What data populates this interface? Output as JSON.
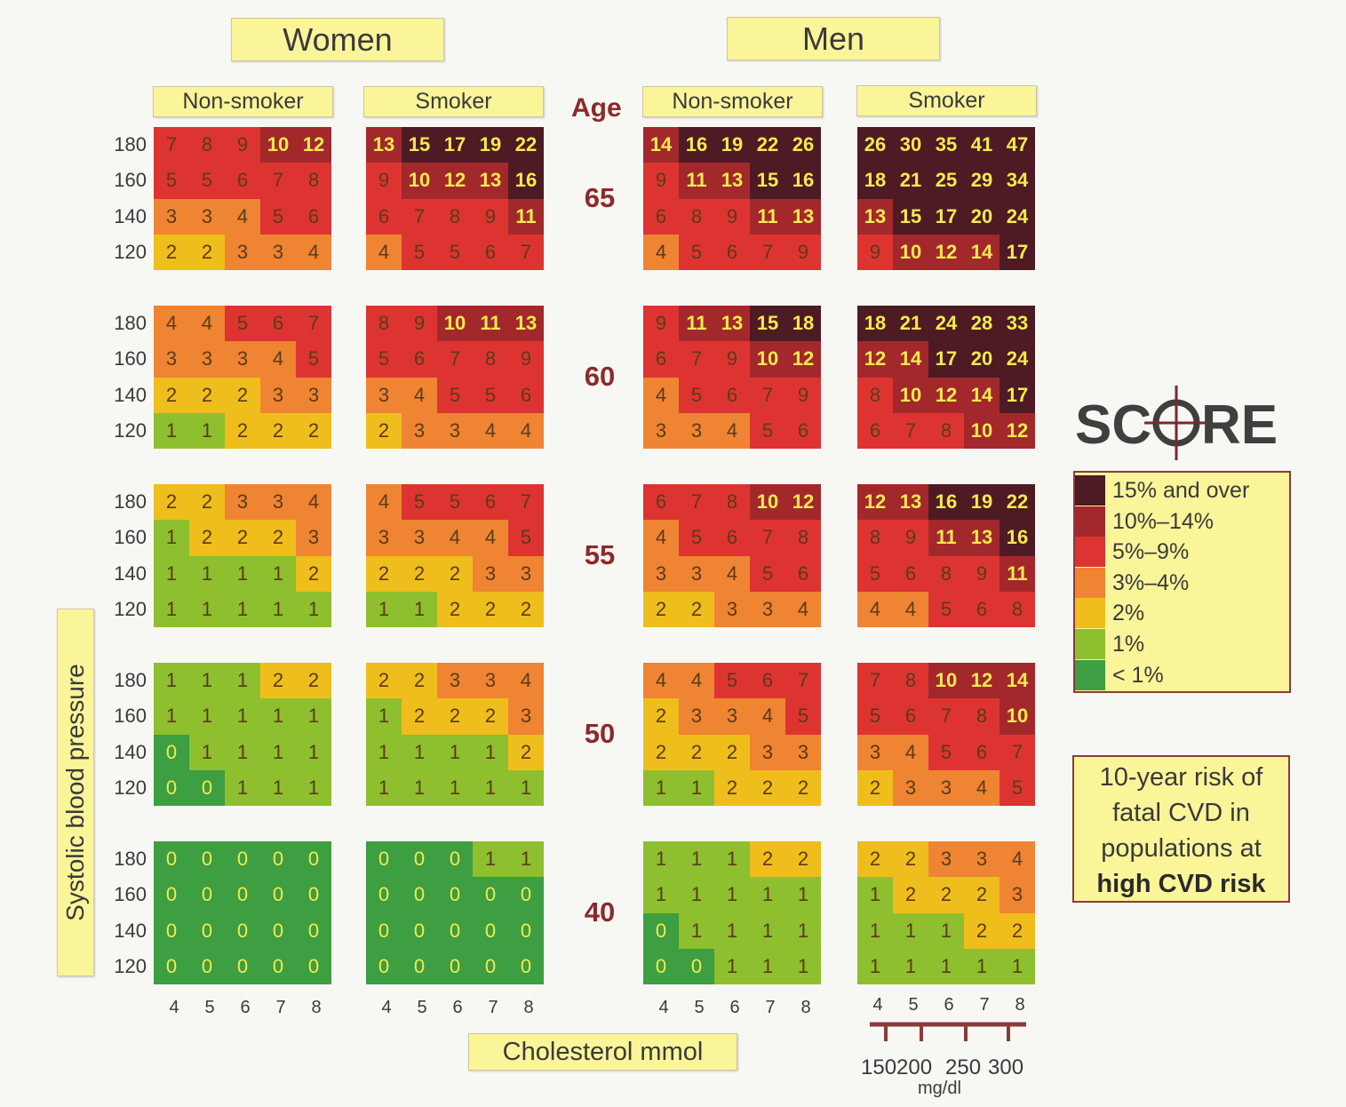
{
  "header": {
    "women": "Women",
    "men": "Men",
    "non_smoker": "Non-smoker",
    "smoker": "Smoker",
    "age": "Age"
  },
  "axis": {
    "ylabel": "Systolic blood pressure",
    "xlabel": "Cholesterol mmol",
    "mgdl_unit": "mg/dl",
    "mgdl_ticks": [
      "150",
      "200",
      "250",
      "300"
    ]
  },
  "logo": {
    "text_left": "SC",
    "text_right": "RE"
  },
  "legend": [
    {
      "label": "15% and over",
      "color": "#4e1a24"
    },
    {
      "label": "10%–14%",
      "color": "#a3282c"
    },
    {
      "label": "5%–9%",
      "color": "#dd3432"
    },
    {
      "label": "3%–4%",
      "color": "#ef8432"
    },
    {
      "label": "2%",
      "color": "#efbe1c"
    },
    {
      "label": "1%",
      "color": "#8ebf2e"
    },
    {
      "label": "< 1%",
      "color": "#3d9e42"
    }
  ],
  "riskbox": {
    "line1": "10-year risk of",
    "line2": "fatal CVD in",
    "line3": "populations at",
    "line4": "high CVD risk"
  },
  "chart_data": {
    "type": "heatmap",
    "title": "10-year risk of fatal CVD in populations at high CVD risk",
    "xlabel": "Cholesterol mmol",
    "ylabel": "Systolic blood pressure",
    "cholesterol_mmol": [
      "4",
      "5",
      "6",
      "7",
      "8"
    ],
    "cholesterol_mgdl": [
      "150",
      "200",
      "250",
      "300"
    ],
    "sbp": [
      "180",
      "160",
      "140",
      "120"
    ],
    "ages": [
      "65",
      "60",
      "55",
      "50",
      "40"
    ],
    "panels": [
      {
        "sex": "Women",
        "smoker": "Non-smoker",
        "values": [
          [
            [
              7,
              8,
              9,
              10,
              12
            ],
            [
              5,
              5,
              6,
              7,
              8
            ],
            [
              3,
              3,
              4,
              5,
              6
            ],
            [
              2,
              2,
              3,
              3,
              4
            ]
          ],
          [
            [
              4,
              4,
              5,
              6,
              7
            ],
            [
              3,
              3,
              3,
              4,
              5
            ],
            [
              2,
              2,
              2,
              3,
              3
            ],
            [
              1,
              1,
              2,
              2,
              2
            ]
          ],
          [
            [
              2,
              2,
              3,
              3,
              4
            ],
            [
              1,
              2,
              2,
              2,
              3
            ],
            [
              1,
              1,
              1,
              1,
              2
            ],
            [
              1,
              1,
              1,
              1,
              1
            ]
          ],
          [
            [
              1,
              1,
              1,
              2,
              2
            ],
            [
              1,
              1,
              1,
              1,
              1
            ],
            [
              0,
              1,
              1,
              1,
              1
            ],
            [
              0,
              0,
              1,
              1,
              1
            ]
          ],
          [
            [
              0,
              0,
              0,
              0,
              0
            ],
            [
              0,
              0,
              0,
              0,
              0
            ],
            [
              0,
              0,
              0,
              0,
              0
            ],
            [
              0,
              0,
              0,
              0,
              0
            ]
          ]
        ]
      },
      {
        "sex": "Women",
        "smoker": "Smoker",
        "values": [
          [
            [
              13,
              15,
              17,
              19,
              22
            ],
            [
              9,
              10,
              12,
              13,
              16
            ],
            [
              6,
              7,
              8,
              9,
              11
            ],
            [
              4,
              5,
              5,
              6,
              7
            ]
          ],
          [
            [
              8,
              9,
              10,
              11,
              13
            ],
            [
              5,
              6,
              7,
              8,
              9
            ],
            [
              3,
              4,
              5,
              5,
              6
            ],
            [
              2,
              3,
              3,
              4,
              4
            ]
          ],
          [
            [
              4,
              5,
              5,
              6,
              7
            ],
            [
              3,
              3,
              4,
              4,
              5
            ],
            [
              2,
              2,
              2,
              3,
              3
            ],
            [
              1,
              1,
              2,
              2,
              2
            ]
          ],
          [
            [
              2,
              2,
              3,
              3,
              4
            ],
            [
              1,
              2,
              2,
              2,
              3
            ],
            [
              1,
              1,
              1,
              1,
              2
            ],
            [
              1,
              1,
              1,
              1,
              1
            ]
          ],
          [
            [
              0,
              0,
              0,
              1,
              1
            ],
            [
              0,
              0,
              0,
              0,
              0
            ],
            [
              0,
              0,
              0,
              0,
              0
            ],
            [
              0,
              0,
              0,
              0,
              0
            ]
          ]
        ]
      },
      {
        "sex": "Men",
        "smoker": "Non-smoker",
        "values": [
          [
            [
              14,
              16,
              19,
              22,
              26
            ],
            [
              9,
              11,
              13,
              15,
              16
            ],
            [
              6,
              8,
              9,
              11,
              13
            ],
            [
              4,
              5,
              6,
              7,
              9
            ]
          ],
          [
            [
              9,
              11,
              13,
              15,
              18
            ],
            [
              6,
              7,
              9,
              10,
              12
            ],
            [
              4,
              5,
              6,
              7,
              9
            ],
            [
              3,
              3,
              4,
              5,
              6
            ]
          ],
          [
            [
              6,
              7,
              8,
              10,
              12
            ],
            [
              4,
              5,
              6,
              7,
              8
            ],
            [
              3,
              3,
              4,
              5,
              6
            ],
            [
              2,
              2,
              3,
              3,
              4
            ]
          ],
          [
            [
              4,
              4,
              5,
              6,
              7
            ],
            [
              2,
              3,
              3,
              4,
              5
            ],
            [
              2,
              2,
              2,
              3,
              3
            ],
            [
              1,
              1,
              2,
              2,
              2
            ]
          ],
          [
            [
              1,
              1,
              1,
              2,
              2
            ],
            [
              1,
              1,
              1,
              1,
              1
            ],
            [
              0,
              1,
              1,
              1,
              1
            ],
            [
              0,
              0,
              1,
              1,
              1
            ]
          ]
        ]
      },
      {
        "sex": "Men",
        "smoker": "Smoker",
        "values": [
          [
            [
              26,
              30,
              35,
              41,
              47
            ],
            [
              18,
              21,
              25,
              29,
              34
            ],
            [
              13,
              15,
              17,
              20,
              24
            ],
            [
              9,
              10,
              12,
              14,
              17
            ]
          ],
          [
            [
              18,
              21,
              24,
              28,
              33
            ],
            [
              12,
              14,
              17,
              20,
              24
            ],
            [
              8,
              10,
              12,
              14,
              17
            ],
            [
              6,
              7,
              8,
              10,
              12
            ]
          ],
          [
            [
              12,
              13,
              16,
              19,
              22
            ],
            [
              8,
              9,
              11,
              13,
              16
            ],
            [
              5,
              6,
              8,
              9,
              11
            ],
            [
              4,
              4,
              5,
              6,
              8
            ]
          ],
          [
            [
              7,
              8,
              10,
              12,
              14
            ],
            [
              5,
              6,
              7,
              8,
              10
            ],
            [
              3,
              4,
              5,
              6,
              7
            ],
            [
              2,
              3,
              3,
              4,
              5
            ]
          ],
          [
            [
              2,
              2,
              3,
              3,
              4
            ],
            [
              1,
              2,
              2,
              2,
              3
            ],
            [
              1,
              1,
              1,
              2,
              2
            ],
            [
              1,
              1,
              1,
              1,
              1
            ]
          ]
        ]
      }
    ]
  }
}
